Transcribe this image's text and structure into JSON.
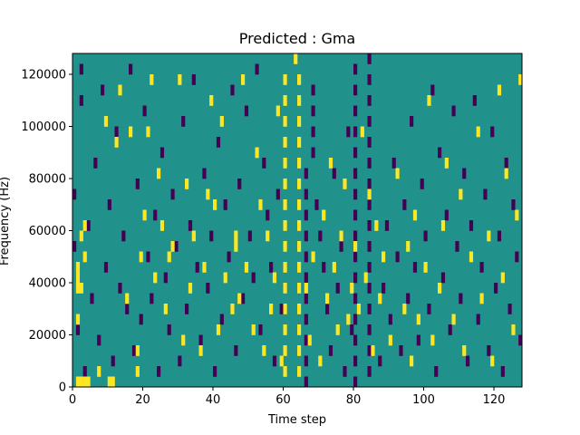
{
  "chart_data": {
    "type": "heatmap",
    "title": "Predicted : Gma",
    "xlabel": "Time step",
    "ylabel": "Frequency (Hz)",
    "xlim": [
      0,
      128
    ],
    "ylim": [
      0,
      128000
    ],
    "xticks": [
      0,
      20,
      40,
      60,
      80,
      100,
      120
    ],
    "xtick_labels": [
      "0",
      "20",
      "40",
      "60",
      "80",
      "100",
      "120"
    ],
    "yticks": [
      0,
      20000,
      40000,
      60000,
      80000,
      100000,
      120000
    ],
    "ytick_labels": [
      "0",
      "20000",
      "40000",
      "60000",
      "80000",
      "100000",
      "120000"
    ],
    "grid": false,
    "colormap": "viridis",
    "background_value_color": "#21918c",
    "colors": {
      "low": "#440154",
      "mid": "#21918c",
      "high": "#fde725"
    },
    "cell_size": {
      "time_steps": 1,
      "frequency_hz": 4000
    },
    "n_time_steps": 128,
    "n_frequency_bins": 32,
    "high_cells": [
      [
        1,
        0
      ],
      [
        2,
        0
      ],
      [
        3,
        0
      ],
      [
        4,
        0
      ],
      [
        1,
        6
      ],
      [
        1,
        9
      ],
      [
        1,
        10
      ],
      [
        1,
        11
      ],
      [
        2,
        9
      ],
      [
        2,
        14
      ],
      [
        3,
        12
      ],
      [
        3,
        15
      ],
      [
        7,
        1
      ],
      [
        9,
        25
      ],
      [
        10,
        0
      ],
      [
        11,
        0
      ],
      [
        12,
        23
      ],
      [
        13,
        28
      ],
      [
        15,
        8
      ],
      [
        16,
        24
      ],
      [
        18,
        1
      ],
      [
        18,
        3
      ],
      [
        19,
        12
      ],
      [
        20,
        16
      ],
      [
        21,
        24
      ],
      [
        22,
        29
      ],
      [
        23,
        10
      ],
      [
        24,
        20
      ],
      [
        25,
        15
      ],
      [
        26,
        7
      ],
      [
        27,
        12
      ],
      [
        28,
        13
      ],
      [
        30,
        29
      ],
      [
        31,
        4
      ],
      [
        32,
        19
      ],
      [
        33,
        9
      ],
      [
        34,
        14
      ],
      [
        36,
        3
      ],
      [
        37,
        11
      ],
      [
        38,
        18
      ],
      [
        39,
        27
      ],
      [
        40,
        17
      ],
      [
        41,
        5
      ],
      [
        42,
        25
      ],
      [
        43,
        10
      ],
      [
        45,
        7
      ],
      [
        46,
        13
      ],
      [
        46,
        14
      ],
      [
        47,
        8
      ],
      [
        48,
        29
      ],
      [
        49,
        11
      ],
      [
        51,
        5
      ],
      [
        52,
        22
      ],
      [
        53,
        17
      ],
      [
        54,
        3
      ],
      [
        55,
        14
      ],
      [
        56,
        7
      ],
      [
        57,
        10
      ],
      [
        58,
        26
      ],
      [
        59,
        2
      ],
      [
        60,
        1
      ],
      [
        60,
        3
      ],
      [
        60,
        5
      ],
      [
        60,
        7
      ],
      [
        60,
        9
      ],
      [
        60,
        11
      ],
      [
        60,
        13
      ],
      [
        60,
        15
      ],
      [
        60,
        17
      ],
      [
        60,
        19
      ],
      [
        60,
        21
      ],
      [
        60,
        23
      ],
      [
        60,
        25
      ],
      [
        60,
        27
      ],
      [
        60,
        29
      ],
      [
        63,
        31
      ],
      [
        64,
        1
      ],
      [
        64,
        3
      ],
      [
        64,
        5
      ],
      [
        64,
        7
      ],
      [
        64,
        9
      ],
      [
        64,
        11
      ],
      [
        64,
        13
      ],
      [
        64,
        15
      ],
      [
        64,
        17
      ],
      [
        64,
        19
      ],
      [
        64,
        21
      ],
      [
        64,
        23
      ],
      [
        64,
        25
      ],
      [
        64,
        27
      ],
      [
        64,
        29
      ],
      [
        66,
        9
      ],
      [
        67,
        4
      ],
      [
        68,
        12
      ],
      [
        70,
        2
      ],
      [
        71,
        16
      ],
      [
        72,
        8
      ],
      [
        73,
        21
      ],
      [
        74,
        11
      ],
      [
        75,
        5
      ],
      [
        76,
        14
      ],
      [
        77,
        19
      ],
      [
        78,
        6
      ],
      [
        79,
        9
      ],
      [
        80,
        13
      ],
      [
        81,
        7
      ],
      [
        82,
        24
      ],
      [
        83,
        10
      ],
      [
        84,
        18
      ],
      [
        85,
        3
      ],
      [
        86,
        15
      ],
      [
        87,
        8
      ],
      [
        88,
        12
      ],
      [
        90,
        4
      ],
      [
        92,
        20
      ],
      [
        94,
        7
      ],
      [
        95,
        13
      ],
      [
        96,
        2
      ],
      [
        97,
        16
      ],
      [
        98,
        6
      ],
      [
        100,
        11
      ],
      [
        101,
        27
      ],
      [
        102,
        4
      ],
      [
        104,
        9
      ],
      [
        105,
        15
      ],
      [
        106,
        21
      ],
      [
        108,
        6
      ],
      [
        110,
        18
      ],
      [
        111,
        3
      ],
      [
        113,
        12
      ],
      [
        115,
        24
      ],
      [
        116,
        8
      ],
      [
        118,
        14
      ],
      [
        119,
        2
      ],
      [
        121,
        28
      ],
      [
        122,
        10
      ],
      [
        123,
        20
      ],
      [
        125,
        5
      ],
      [
        126,
        16
      ],
      [
        127,
        29
      ]
    ],
    "low_cells": [
      [
        0,
        13
      ],
      [
        0,
        18
      ],
      [
        1,
        5
      ],
      [
        1,
        10
      ],
      [
        2,
        27
      ],
      [
        2,
        30
      ],
      [
        3,
        1
      ],
      [
        4,
        15
      ],
      [
        5,
        8
      ],
      [
        6,
        21
      ],
      [
        7,
        4
      ],
      [
        8,
        28
      ],
      [
        9,
        11
      ],
      [
        10,
        17
      ],
      [
        11,
        2
      ],
      [
        12,
        24
      ],
      [
        13,
        9
      ],
      [
        14,
        14
      ],
      [
        15,
        7
      ],
      [
        16,
        30
      ],
      [
        17,
        3
      ],
      [
        18,
        19
      ],
      [
        19,
        6
      ],
      [
        20,
        26
      ],
      [
        21,
        12
      ],
      [
        22,
        8
      ],
      [
        23,
        16
      ],
      [
        24,
        1
      ],
      [
        25,
        22
      ],
      [
        26,
        10
      ],
      [
        27,
        5
      ],
      [
        28,
        18
      ],
      [
        29,
        13
      ],
      [
        30,
        2
      ],
      [
        31,
        25
      ],
      [
        32,
        7
      ],
      [
        33,
        15
      ],
      [
        34,
        29
      ],
      [
        35,
        11
      ],
      [
        36,
        4
      ],
      [
        37,
        20
      ],
      [
        38,
        9
      ],
      [
        39,
        14
      ],
      [
        40,
        1
      ],
      [
        41,
        23
      ],
      [
        42,
        6
      ],
      [
        43,
        17
      ],
      [
        44,
        12
      ],
      [
        45,
        28
      ],
      [
        46,
        3
      ],
      [
        47,
        19
      ],
      [
        48,
        8
      ],
      [
        49,
        26
      ],
      [
        50,
        14
      ],
      [
        51,
        10
      ],
      [
        52,
        30
      ],
      [
        53,
        5
      ],
      [
        54,
        21
      ],
      [
        55,
        16
      ],
      [
        56,
        11
      ],
      [
        57,
        2
      ],
      [
        58,
        18
      ],
      [
        59,
        7
      ],
      [
        66,
        0
      ],
      [
        66,
        2
      ],
      [
        66,
        4
      ],
      [
        66,
        6
      ],
      [
        66,
        8
      ],
      [
        66,
        10
      ],
      [
        66,
        12
      ],
      [
        66,
        14
      ],
      [
        66,
        16
      ],
      [
        66,
        18
      ],
      [
        66,
        20
      ],
      [
        68,
        22
      ],
      [
        68,
        24
      ],
      [
        68,
        26
      ],
      [
        68,
        28
      ],
      [
        69,
        17
      ],
      [
        70,
        14
      ],
      [
        71,
        11
      ],
      [
        72,
        7
      ],
      [
        73,
        3
      ],
      [
        74,
        20
      ],
      [
        75,
        9
      ],
      [
        76,
        13
      ],
      [
        77,
        1
      ],
      [
        78,
        24
      ],
      [
        79,
        5
      ],
      [
        80,
        0
      ],
      [
        80,
        2
      ],
      [
        80,
        4
      ],
      [
        80,
        6
      ],
      [
        80,
        8
      ],
      [
        80,
        10
      ],
      [
        80,
        12
      ],
      [
        80,
        14
      ],
      [
        80,
        16
      ],
      [
        80,
        18
      ],
      [
        80,
        20
      ],
      [
        80,
        22
      ],
      [
        80,
        24
      ],
      [
        80,
        26
      ],
      [
        80,
        28
      ],
      [
        80,
        30
      ],
      [
        84,
        1
      ],
      [
        84,
        3
      ],
      [
        84,
        5
      ],
      [
        84,
        7
      ],
      [
        84,
        9
      ],
      [
        84,
        11
      ],
      [
        84,
        13
      ],
      [
        84,
        15
      ],
      [
        84,
        17
      ],
      [
        84,
        19
      ],
      [
        84,
        21
      ],
      [
        84,
        23
      ],
      [
        84,
        25
      ],
      [
        84,
        27
      ],
      [
        84,
        29
      ],
      [
        84,
        31
      ],
      [
        87,
        2
      ],
      [
        88,
        9
      ],
      [
        89,
        15
      ],
      [
        90,
        6
      ],
      [
        91,
        21
      ],
      [
        92,
        12
      ],
      [
        93,
        3
      ],
      [
        94,
        17
      ],
      [
        95,
        8
      ],
      [
        96,
        25
      ],
      [
        97,
        11
      ],
      [
        98,
        4
      ],
      [
        99,
        19
      ],
      [
        100,
        14
      ],
      [
        101,
        7
      ],
      [
        102,
        28
      ],
      [
        103,
        1
      ],
      [
        104,
        22
      ],
      [
        105,
        10
      ],
      [
        106,
        16
      ],
      [
        107,
        5
      ],
      [
        108,
        26
      ],
      [
        109,
        13
      ],
      [
        110,
        8
      ],
      [
        111,
        20
      ],
      [
        112,
        2
      ],
      [
        113,
        15
      ],
      [
        114,
        27
      ],
      [
        115,
        6
      ],
      [
        116,
        11
      ],
      [
        117,
        18
      ],
      [
        118,
        3
      ],
      [
        119,
        24
      ],
      [
        120,
        9
      ],
      [
        121,
        14
      ],
      [
        122,
        1
      ],
      [
        123,
        21
      ],
      [
        124,
        7
      ],
      [
        125,
        17
      ],
      [
        126,
        12
      ],
      [
        127,
        4
      ]
    ]
  }
}
